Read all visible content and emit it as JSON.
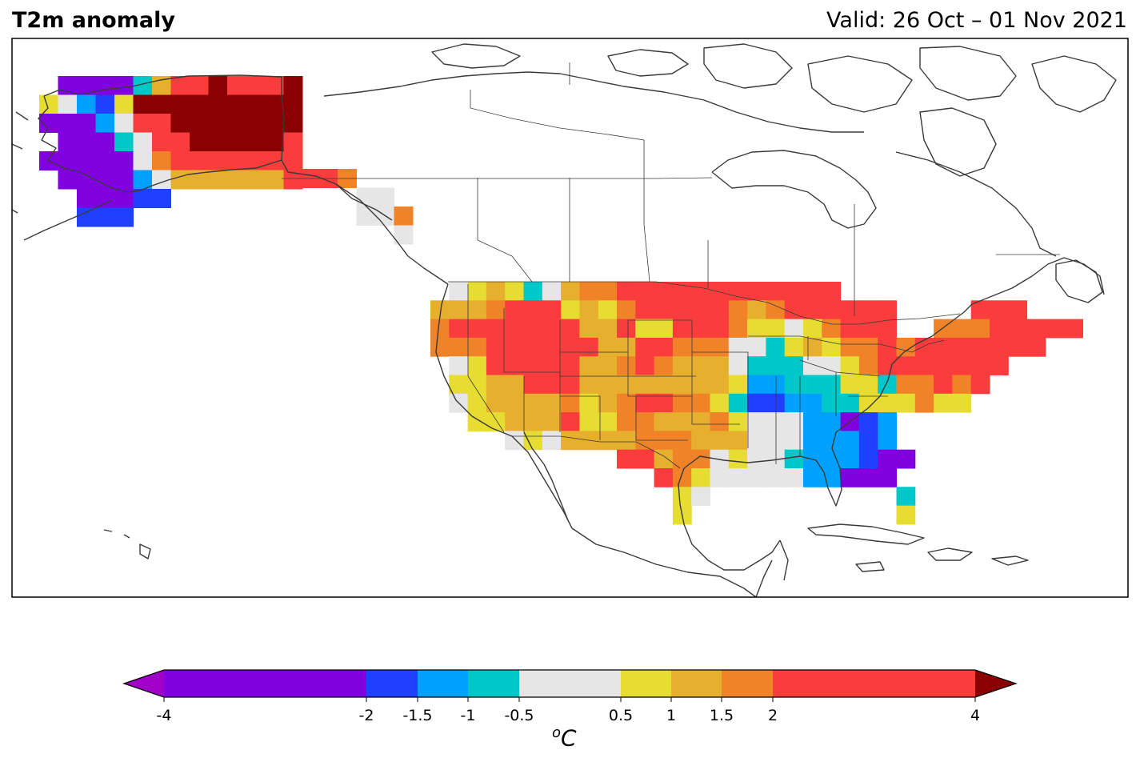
{
  "title_left": "T2m anomaly",
  "title_right": "Valid: 26 Oct – 01 Nov 2021",
  "colorbar": {
    "unit_base": "C",
    "unit_prefix": "o",
    "ticks": [
      "-4",
      "-2",
      "-1.5",
      "-1",
      "-0.5",
      "0.5",
      "1",
      "1.5",
      "2",
      "4"
    ],
    "tick_values": [
      -4,
      -2,
      -1.5,
      -1,
      -0.5,
      0.5,
      1,
      1.5,
      2,
      4
    ],
    "bins": [
      {
        "from": -4,
        "to": -2,
        "color": "#8000e0"
      },
      {
        "from": -2,
        "to": -1.5,
        "color": "#2040ff"
      },
      {
        "from": -1.5,
        "to": -1,
        "color": "#00a0ff"
      },
      {
        "from": -1,
        "to": -0.5,
        "color": "#00c8c8"
      },
      {
        "from": -0.5,
        "to": 0.5,
        "color": "#e6e6e6"
      },
      {
        "from": 0.5,
        "to": 1,
        "color": "#e6dc32"
      },
      {
        "from": 1,
        "to": 1.5,
        "color": "#e6af2d"
      },
      {
        "from": 1.5,
        "to": 2,
        "color": "#f08228"
      },
      {
        "from": 2,
        "to": 4,
        "color": "#fa3c3c"
      }
    ],
    "under_color": "#a000c8",
    "over_color": "#8b0000"
  }
}
